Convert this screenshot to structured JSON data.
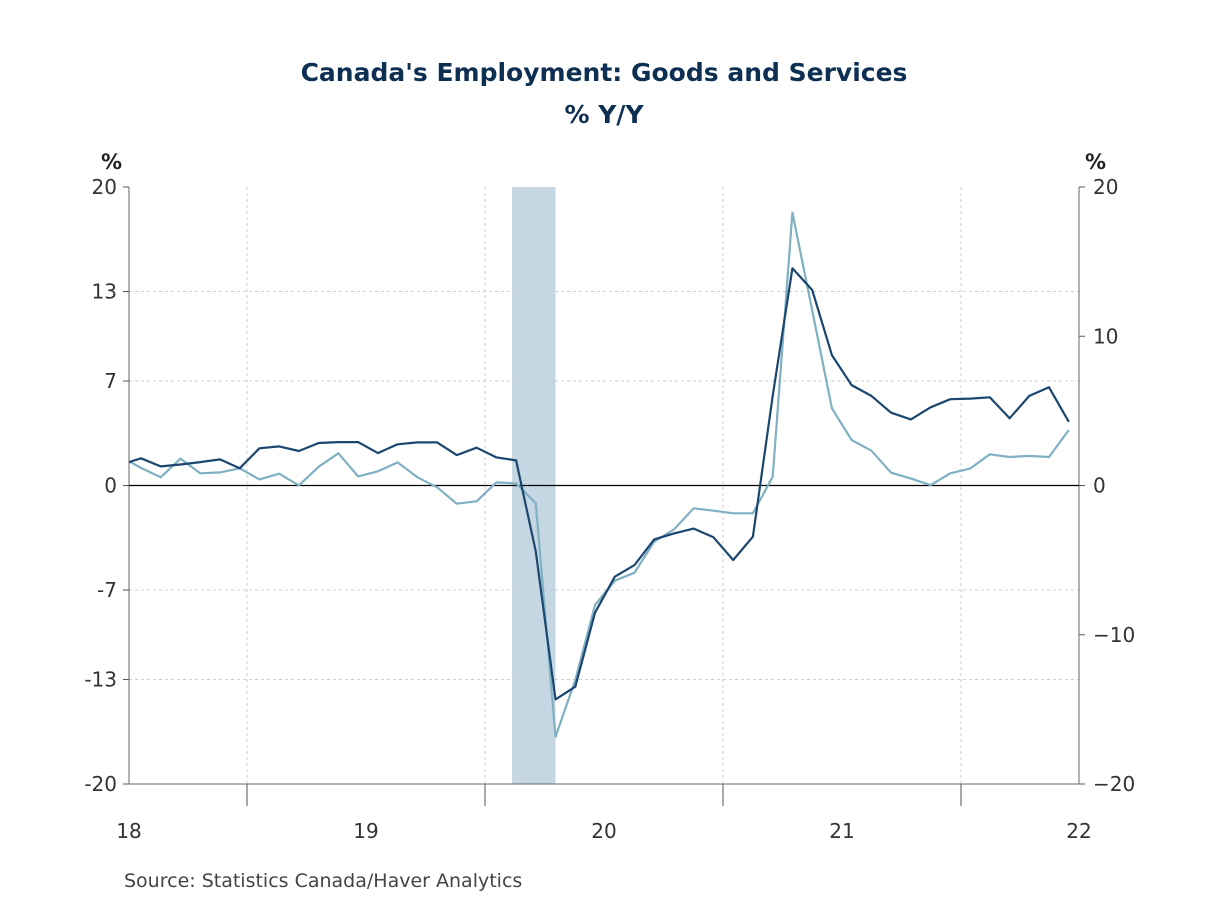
{
  "chart_data": {
    "type": "line",
    "title": "Canada's Employment: Goods and Services",
    "subtitle": "% Y/Y",
    "ylabel_left": "%",
    "ylabel_right": "%",
    "ylim": [
      -20,
      20
    ],
    "y_ticks_left": [
      "20",
      "13",
      "7",
      "0",
      "-7",
      "-13",
      "-20"
    ],
    "y_ticks_right": [
      "20",
      "10",
      "0",
      "−10",
      "−20"
    ],
    "x_tick_labels": [
      "18",
      "19",
      "20",
      "21",
      "22"
    ],
    "grid": true,
    "recession_shading": {
      "from": "2020-02",
      "to": "2020-04",
      "color": "#c5d7e2"
    },
    "x": [
      "2018-06",
      "2018-07",
      "2018-08",
      "2018-09",
      "2018-10",
      "2018-11",
      "2018-12",
      "2019-01",
      "2019-02",
      "2019-03",
      "2019-04",
      "2019-05",
      "2019-06",
      "2019-07",
      "2019-08",
      "2019-09",
      "2019-10",
      "2019-11",
      "2019-12",
      "2020-01",
      "2020-02",
      "2020-03",
      "2020-04",
      "2020-05",
      "2020-06",
      "2020-07",
      "2020-08",
      "2020-09",
      "2020-10",
      "2020-11",
      "2020-12",
      "2021-01",
      "2021-02",
      "2021-03",
      "2021-04",
      "2021-05",
      "2021-06",
      "2021-07",
      "2021-08",
      "2021-09",
      "2021-10",
      "2021-11",
      "2021-12",
      "2022-01",
      "2022-02",
      "2022-03",
      "2022-04",
      "2022-05",
      "2022-06"
    ],
    "series": [
      {
        "color": "#1b466f",
        "values": [
          1.4,
          1.82,
          1.28,
          1.41,
          1.57,
          1.75,
          1.15,
          2.49,
          2.62,
          2.31,
          2.85,
          2.91,
          2.91,
          2.17,
          2.76,
          2.89,
          2.89,
          2.04,
          2.53,
          1.88,
          1.68,
          -4.43,
          -14.33,
          -13.48,
          -8.52,
          -6.11,
          -5.33,
          -3.61,
          -3.21,
          -2.89,
          -3.47,
          -4.99,
          -3.43,
          6.0,
          14.55,
          13.1,
          8.74,
          6.73,
          6.0,
          4.88,
          4.43,
          5.24,
          5.78,
          5.82,
          5.91,
          4.5,
          6.0,
          6.58,
          4.27
        ]
      },
      {
        "color": "#7fb1c3",
        "values": [
          1.9,
          1.18,
          0.55,
          1.8,
          0.82,
          0.88,
          1.15,
          0.41,
          0.79,
          0.01,
          1.26,
          2.16,
          0.61,
          0.95,
          1.55,
          0.55,
          -0.12,
          -1.22,
          -1.06,
          0.21,
          0.15,
          -1.19,
          -16.83,
          -13.03,
          -8.01,
          -6.38,
          -5.84,
          -3.76,
          -2.94,
          -1.53,
          -1.69,
          -1.86,
          -1.86,
          0.59,
          18.28,
          11.74,
          5.17,
          3.05,
          2.33,
          0.86,
          0.46,
          0.03,
          0.82,
          1.13,
          2.09,
          1.91,
          1.98,
          1.91,
          3.72
        ]
      }
    ]
  },
  "source": "Source:  Statistics Canada/Haver Analytics"
}
